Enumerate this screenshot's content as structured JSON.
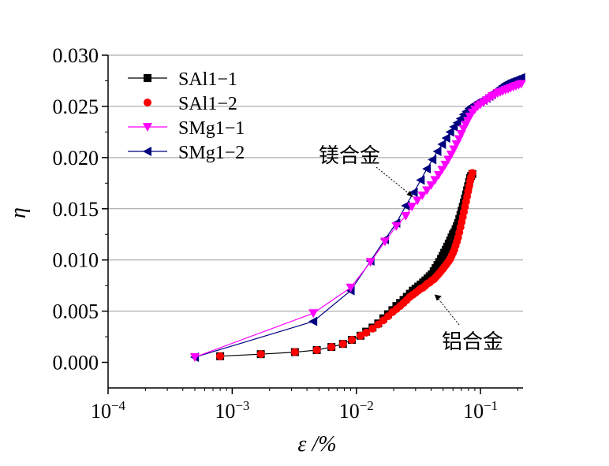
{
  "chart_data": {
    "type": "scatter",
    "title": "",
    "xlabel": "ε /%",
    "ylabel": "η",
    "xscale": "log",
    "xlim": [
      0.0001,
      0.22
    ],
    "ylim": [
      -0.0025,
      0.03
    ],
    "x_ticks": [
      {
        "value": 0.0001,
        "base": "10",
        "exp": "−4"
      },
      {
        "value": 0.001,
        "base": "10",
        "exp": "−3"
      },
      {
        "value": 0.01,
        "base": "10",
        "exp": "−2"
      },
      {
        "value": 0.1,
        "base": "10",
        "exp": "−1"
      }
    ],
    "y_ticks": [
      {
        "value": 0.0,
        "label": "0.000"
      },
      {
        "value": 0.005,
        "label": "0.005"
      },
      {
        "value": 0.01,
        "label": "0.010"
      },
      {
        "value": 0.015,
        "label": "0.015"
      },
      {
        "value": 0.02,
        "label": "0.020"
      },
      {
        "value": 0.025,
        "label": "0.025"
      },
      {
        "value": 0.03,
        "label": "0.030"
      }
    ],
    "grid": "horizontal",
    "legend_position": "top-left",
    "series": [
      {
        "name": "SAl1−1",
        "color": "#000000",
        "marker": "square",
        "line": true,
        "points": [
          [
            0.0008,
            0.0006
          ],
          [
            0.0017,
            0.0008
          ],
          [
            0.0032,
            0.001
          ],
          [
            0.0048,
            0.0012
          ],
          [
            0.0063,
            0.0015
          ],
          [
            0.0078,
            0.0018
          ],
          [
            0.0092,
            0.0022
          ],
          [
            0.0108,
            0.0026
          ],
          [
            0.012,
            0.003
          ],
          [
            0.0135,
            0.0034
          ],
          [
            0.015,
            0.0038
          ],
          [
            0.0165,
            0.0043
          ],
          [
            0.018,
            0.0047
          ],
          [
            0.0195,
            0.0051
          ],
          [
            0.021,
            0.0055
          ],
          [
            0.0225,
            0.0058
          ],
          [
            0.024,
            0.0061
          ],
          [
            0.0255,
            0.0064
          ],
          [
            0.027,
            0.0067
          ],
          [
            0.0285,
            0.007
          ],
          [
            0.03,
            0.0072
          ],
          [
            0.0315,
            0.0074
          ],
          [
            0.033,
            0.0076
          ],
          [
            0.0345,
            0.0078
          ],
          [
            0.036,
            0.008
          ],
          [
            0.0375,
            0.0082
          ],
          [
            0.039,
            0.0084
          ],
          [
            0.0405,
            0.0086
          ],
          [
            0.042,
            0.0089
          ],
          [
            0.0435,
            0.0092
          ],
          [
            0.045,
            0.0095
          ],
          [
            0.0465,
            0.0098
          ],
          [
            0.048,
            0.0101
          ],
          [
            0.0495,
            0.0104
          ],
          [
            0.051,
            0.0107
          ],
          [
            0.0525,
            0.011
          ],
          [
            0.054,
            0.0113
          ],
          [
            0.0555,
            0.0116
          ],
          [
            0.057,
            0.0119
          ],
          [
            0.0585,
            0.0122
          ],
          [
            0.06,
            0.0125
          ],
          [
            0.0615,
            0.0127
          ],
          [
            0.063,
            0.013
          ],
          [
            0.0645,
            0.0133
          ],
          [
            0.066,
            0.0136
          ],
          [
            0.0675,
            0.014
          ],
          [
            0.069,
            0.0144
          ],
          [
            0.0705,
            0.0148
          ],
          [
            0.072,
            0.0152
          ],
          [
            0.0735,
            0.0156
          ],
          [
            0.075,
            0.016
          ],
          [
            0.0765,
            0.0164
          ],
          [
            0.078,
            0.0168
          ],
          [
            0.0795,
            0.0172
          ],
          [
            0.081,
            0.0176
          ],
          [
            0.0825,
            0.018
          ],
          [
            0.084,
            0.0182
          ],
          [
            0.086,
            0.0184
          ]
        ]
      },
      {
        "name": "SAl1−2",
        "color": "#ff0000",
        "marker": "circle",
        "line": false,
        "points": [
          [
            0.0008,
            0.0006
          ],
          [
            0.0017,
            0.0008
          ],
          [
            0.0032,
            0.001
          ],
          [
            0.0048,
            0.0012
          ],
          [
            0.0063,
            0.0015
          ],
          [
            0.0078,
            0.0018
          ],
          [
            0.0092,
            0.0022
          ],
          [
            0.0108,
            0.0026
          ],
          [
            0.012,
            0.0029
          ],
          [
            0.0135,
            0.0033
          ],
          [
            0.015,
            0.0037
          ],
          [
            0.0165,
            0.0041
          ],
          [
            0.018,
            0.0045
          ],
          [
            0.0195,
            0.0049
          ],
          [
            0.021,
            0.0052
          ],
          [
            0.0225,
            0.0055
          ],
          [
            0.024,
            0.0058
          ],
          [
            0.0255,
            0.0061
          ],
          [
            0.027,
            0.0064
          ],
          [
            0.0285,
            0.0066
          ],
          [
            0.03,
            0.0068
          ],
          [
            0.0315,
            0.007
          ],
          [
            0.033,
            0.0072
          ],
          [
            0.0345,
            0.0073
          ],
          [
            0.036,
            0.0075
          ],
          [
            0.0375,
            0.0077
          ],
          [
            0.039,
            0.0078
          ],
          [
            0.0405,
            0.008
          ],
          [
            0.042,
            0.0081
          ],
          [
            0.0435,
            0.0083
          ],
          [
            0.045,
            0.0085
          ],
          [
            0.0465,
            0.0087
          ],
          [
            0.048,
            0.0089
          ],
          [
            0.0495,
            0.0091
          ],
          [
            0.051,
            0.0093
          ],
          [
            0.0525,
            0.0095
          ],
          [
            0.054,
            0.0097
          ],
          [
            0.0555,
            0.0099
          ],
          [
            0.057,
            0.0101
          ],
          [
            0.0585,
            0.0104
          ],
          [
            0.06,
            0.0107
          ],
          [
            0.0615,
            0.011
          ],
          [
            0.063,
            0.0114
          ],
          [
            0.0645,
            0.0118
          ],
          [
            0.066,
            0.0122
          ],
          [
            0.0675,
            0.0127
          ],
          [
            0.069,
            0.0132
          ],
          [
            0.0705,
            0.0137
          ],
          [
            0.072,
            0.0142
          ],
          [
            0.0735,
            0.0147
          ],
          [
            0.075,
            0.0152
          ],
          [
            0.0765,
            0.0157
          ],
          [
            0.078,
            0.0162
          ],
          [
            0.0795,
            0.0167
          ],
          [
            0.081,
            0.0172
          ],
          [
            0.0825,
            0.0177
          ],
          [
            0.084,
            0.0181
          ],
          [
            0.086,
            0.0185
          ]
        ]
      },
      {
        "name": "SMg1−1",
        "color": "#ff00ff",
        "marker": "triangle-down",
        "line": true,
        "points": [
          [
            0.0005,
            0.0005
          ],
          [
            0.0045,
            0.0048
          ],
          [
            0.009,
            0.0073
          ],
          [
            0.013,
            0.0098
          ],
          [
            0.017,
            0.0118
          ],
          [
            0.021,
            0.0133
          ],
          [
            0.025,
            0.0143
          ],
          [
            0.028,
            0.0152
          ],
          [
            0.031,
            0.0158
          ],
          [
            0.034,
            0.0163
          ],
          [
            0.037,
            0.0168
          ],
          [
            0.04,
            0.0173
          ],
          [
            0.043,
            0.0178
          ],
          [
            0.046,
            0.0183
          ],
          [
            0.049,
            0.0188
          ],
          [
            0.052,
            0.0193
          ],
          [
            0.055,
            0.0198
          ],
          [
            0.058,
            0.0203
          ],
          [
            0.061,
            0.0208
          ],
          [
            0.064,
            0.0213
          ],
          [
            0.067,
            0.0218
          ],
          [
            0.07,
            0.0223
          ],
          [
            0.073,
            0.0228
          ],
          [
            0.076,
            0.0232
          ],
          [
            0.079,
            0.0236
          ],
          [
            0.082,
            0.024
          ],
          [
            0.086,
            0.0244
          ],
          [
            0.09,
            0.0247
          ],
          [
            0.095,
            0.025
          ],
          [
            0.1,
            0.0252
          ],
          [
            0.106,
            0.0254
          ],
          [
            0.112,
            0.0256
          ],
          [
            0.118,
            0.0258
          ],
          [
            0.124,
            0.026
          ],
          [
            0.13,
            0.0261
          ],
          [
            0.137,
            0.0263
          ],
          [
            0.144,
            0.0264
          ],
          [
            0.151,
            0.0265
          ],
          [
            0.159,
            0.0266
          ],
          [
            0.167,
            0.0267
          ],
          [
            0.175,
            0.0268
          ],
          [
            0.184,
            0.0269
          ],
          [
            0.193,
            0.027
          ],
          [
            0.203,
            0.0271
          ],
          [
            0.213,
            0.0272
          ]
        ]
      },
      {
        "name": "SMg1−2",
        "color": "#000080",
        "marker": "triangle-left",
        "line": true,
        "points": [
          [
            0.0005,
            0.0005
          ],
          [
            0.0045,
            0.004
          ],
          [
            0.009,
            0.007
          ],
          [
            0.013,
            0.0099
          ],
          [
            0.017,
            0.012
          ],
          [
            0.021,
            0.0136
          ],
          [
            0.025,
            0.0153
          ],
          [
            0.029,
            0.0166
          ],
          [
            0.033,
            0.0178
          ],
          [
            0.037,
            0.0189
          ],
          [
            0.041,
            0.0198
          ],
          [
            0.045,
            0.0206
          ],
          [
            0.049,
            0.0213
          ],
          [
            0.053,
            0.0219
          ],
          [
            0.057,
            0.0225
          ],
          [
            0.061,
            0.023
          ],
          [
            0.065,
            0.0234
          ],
          [
            0.069,
            0.0238
          ],
          [
            0.073,
            0.0242
          ],
          [
            0.077,
            0.0245
          ],
          [
            0.081,
            0.0248
          ],
          [
            0.085,
            0.025
          ],
          [
            0.09,
            0.0252
          ],
          [
            0.095,
            0.0254
          ],
          [
            0.1,
            0.0255
          ],
          [
            0.106,
            0.0256
          ],
          [
            0.112,
            0.0258
          ],
          [
            0.118,
            0.026
          ],
          [
            0.124,
            0.0262
          ],
          [
            0.13,
            0.0264
          ],
          [
            0.137,
            0.0266
          ],
          [
            0.144,
            0.0268
          ],
          [
            0.151,
            0.027
          ],
          [
            0.159,
            0.0272
          ],
          [
            0.167,
            0.0273
          ],
          [
            0.175,
            0.0274
          ],
          [
            0.184,
            0.0275
          ],
          [
            0.193,
            0.0276
          ],
          [
            0.203,
            0.0277
          ],
          [
            0.213,
            0.0278
          ]
        ]
      }
    ],
    "annotations": [
      {
        "text": "镁合金",
        "target": [
          0.029,
          0.0166
        ]
      },
      {
        "text": "铝合金",
        "target": [
          0.042,
          0.0067
        ]
      }
    ]
  }
}
